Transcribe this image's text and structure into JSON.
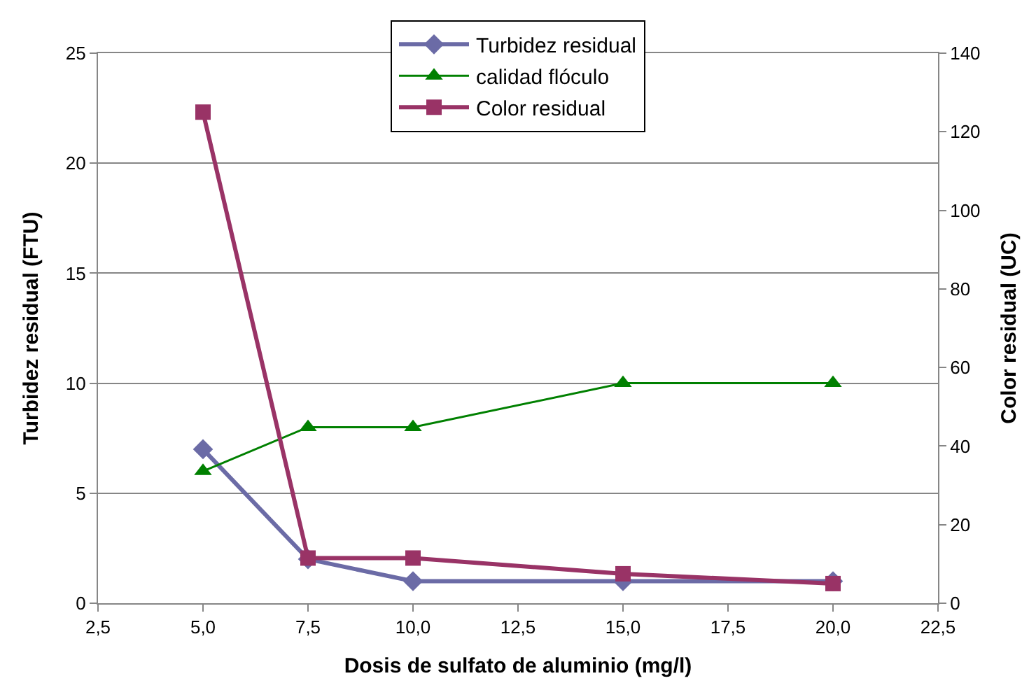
{
  "chart_data": {
    "type": "line",
    "xlabel": "Dosis de sulfato de aluminio (mg/l)",
    "ylabel": "Turbidez residual (FTU)",
    "y2label": "Color residual (UC)",
    "x": [
      5,
      7.5,
      10,
      15,
      20
    ],
    "series": [
      {
        "name": "Turbidez residual",
        "color": "#6b6ba6",
        "marker": "diamond",
        "values": [
          7,
          2,
          1,
          1,
          1
        ]
      },
      {
        "name": "calidad flóculo",
        "color": "#008000",
        "marker": "triangle",
        "values": [
          6,
          8,
          8,
          10,
          10
        ]
      },
      {
        "name": "Color residual",
        "color": "#993366",
        "marker": "square",
        "axis": "y2",
        "values": [
          125,
          11.5,
          11.5,
          7.5,
          5
        ]
      }
    ],
    "xlim": [
      2.5,
      22.5
    ],
    "xticks": [
      {
        "value": 2.5,
        "label": "2,5"
      },
      {
        "value": 5,
        "label": "5,0"
      },
      {
        "value": 7.5,
        "label": "7,5"
      },
      {
        "value": 10,
        "label": "10,0"
      },
      {
        "value": 12.5,
        "label": "12,5"
      },
      {
        "value": 15,
        "label": "15,0"
      },
      {
        "value": 17.5,
        "label": "17,5"
      },
      {
        "value": 20,
        "label": "20,0"
      },
      {
        "value": 22.5,
        "label": "22,5"
      }
    ],
    "ylim": [
      0,
      25
    ],
    "yticks": [
      0,
      5,
      10,
      15,
      20,
      25
    ],
    "y2lim": [
      0,
      140
    ],
    "y2ticks": [
      0,
      20,
      40,
      60,
      80,
      100,
      120,
      140
    ],
    "grid": "y",
    "legend": "top"
  }
}
